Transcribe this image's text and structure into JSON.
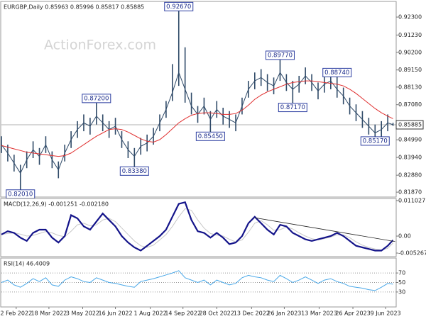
{
  "chart_data": [
    {
      "type": "hlc",
      "title": "EURGBP,Daily  0.85963 0.85996 0.85817 0.85885",
      "watermark": "ActionForex.com",
      "color": "#2f4a68",
      "x": [
        0,
        6,
        12,
        18,
        24,
        30,
        36,
        42,
        48,
        54,
        60,
        66,
        72,
        78,
        84,
        90,
        96,
        102,
        108,
        114,
        120,
        126,
        132,
        138,
        144,
        150,
        156,
        162,
        168,
        174,
        180,
        186,
        192,
        198,
        204,
        210,
        216,
        222,
        228,
        234,
        240,
        246,
        252,
        258,
        264,
        270,
        276,
        282,
        288,
        294,
        300,
        306,
        312,
        318,
        324,
        330,
        336,
        342,
        348,
        354,
        360,
        366,
        371
      ],
      "high": [
        0.852,
        0.847,
        0.841,
        0.835,
        0.843,
        0.849,
        0.845,
        0.852,
        0.843,
        0.837,
        0.847,
        0.855,
        0.861,
        0.865,
        0.863,
        0.872,
        0.865,
        0.861,
        0.863,
        0.855,
        0.849,
        0.845,
        0.851,
        0.853,
        0.857,
        0.865,
        0.873,
        0.895,
        0.9267,
        0.905,
        0.878,
        0.87,
        0.875,
        0.867,
        0.873,
        0.869,
        0.867,
        0.865,
        0.875,
        0.885,
        0.89,
        0.892,
        0.889,
        0.887,
        0.8977,
        0.889,
        0.885,
        0.888,
        0.893,
        0.889,
        0.884,
        0.888,
        0.89,
        0.8874,
        0.881,
        0.875,
        0.871,
        0.867,
        0.863,
        0.859,
        0.861,
        0.865,
        0.86
      ],
      "low": [
        0.842,
        0.837,
        0.831,
        0.8201,
        0.833,
        0.839,
        0.835,
        0.842,
        0.833,
        0.827,
        0.837,
        0.845,
        0.851,
        0.855,
        0.853,
        0.859,
        0.855,
        0.851,
        0.853,
        0.845,
        0.839,
        0.8338,
        0.841,
        0.843,
        0.847,
        0.855,
        0.863,
        0.873,
        0.882,
        0.872,
        0.865,
        0.86,
        0.865,
        0.8545,
        0.863,
        0.859,
        0.857,
        0.855,
        0.865,
        0.875,
        0.88,
        0.882,
        0.879,
        0.877,
        0.885,
        0.879,
        0.8717,
        0.878,
        0.883,
        0.879,
        0.874,
        0.878,
        0.88,
        0.875,
        0.871,
        0.865,
        0.861,
        0.857,
        0.853,
        0.8517,
        0.851,
        0.855,
        0.8582
      ],
      "close": [
        0.847,
        0.842,
        0.836,
        0.83,
        0.838,
        0.844,
        0.84,
        0.847,
        0.838,
        0.832,
        0.842,
        0.85,
        0.856,
        0.86,
        0.858,
        0.864,
        0.86,
        0.856,
        0.858,
        0.85,
        0.844,
        0.84,
        0.846,
        0.848,
        0.852,
        0.86,
        0.868,
        0.878,
        0.89,
        0.88,
        0.87,
        0.865,
        0.87,
        0.862,
        0.868,
        0.864,
        0.862,
        0.86,
        0.87,
        0.88,
        0.885,
        0.887,
        0.884,
        0.882,
        0.89,
        0.884,
        0.88,
        0.883,
        0.888,
        0.884,
        0.879,
        0.883,
        0.885,
        0.88,
        0.876,
        0.87,
        0.866,
        0.862,
        0.858,
        0.854,
        0.856,
        0.86,
        0.8589
      ],
      "series": [
        {
          "color": "#e03030",
          "values": [
            0.8465,
            0.8455,
            0.8445,
            0.8435,
            0.8425,
            0.842,
            0.8415,
            0.841,
            0.8405,
            0.84,
            0.8405,
            0.842,
            0.8445,
            0.847,
            0.8495,
            0.852,
            0.854,
            0.856,
            0.8565,
            0.856,
            0.8545,
            0.8525,
            0.8505,
            0.849,
            0.8485,
            0.85,
            0.853,
            0.8565,
            0.86,
            0.8625,
            0.8645,
            0.8655,
            0.866,
            0.866,
            0.8655,
            0.865,
            0.865,
            0.8655,
            0.8675,
            0.8705,
            0.874,
            0.8765,
            0.8785,
            0.88,
            0.8815,
            0.883,
            0.884,
            0.8845,
            0.885,
            0.885,
            0.8845,
            0.884,
            0.8835,
            0.883,
            0.882,
            0.88,
            0.8775,
            0.8745,
            0.8715,
            0.8685,
            0.866,
            0.864,
            0.8625
          ]
        }
      ],
      "xlim": [
        0,
        374
      ],
      "ylim": [
        0.8162,
        0.9319
      ],
      "yticks": [
        {
          "value": 0.923,
          "label": "0.92300"
        },
        {
          "value": 0.9123,
          "label": "0.91230"
        },
        {
          "value": 0.902,
          "label": "0.90200"
        },
        {
          "value": 0.8915,
          "label": "0.89150"
        },
        {
          "value": 0.8813,
          "label": "0.88130"
        },
        {
          "value": 0.8708,
          "label": "0.87080"
        },
        {
          "value": 0.8499,
          "label": "0.84990"
        },
        {
          "value": 0.8394,
          "label": "0.83940"
        },
        {
          "value": 0.8288,
          "label": "0.82880"
        },
        {
          "value": 0.8187,
          "label": "0.81870"
        }
      ],
      "last": {
        "value": 0.85885,
        "label": "0.85885"
      },
      "annotations": [
        {
          "x": 168,
          "value": 0.9267,
          "label": "0.92670"
        },
        {
          "x": 90,
          "value": 0.872,
          "label": "0.87200"
        },
        {
          "x": 126,
          "value": 0.8338,
          "label": "0.83380"
        },
        {
          "x": 18,
          "value": 0.8201,
          "label": "0.82010"
        },
        {
          "x": 198,
          "value": 0.8545,
          "label": "0.85450"
        },
        {
          "x": 264,
          "value": 0.8977,
          "label": "0.89770"
        },
        {
          "x": 276,
          "value": 0.8717,
          "label": "0.87170"
        },
        {
          "x": 318,
          "value": 0.8874,
          "label": "0.88740"
        },
        {
          "x": 354,
          "value": 0.8517,
          "label": "0.85170"
        }
      ]
    },
    {
      "type": "line",
      "title": "MACD(12,26,9) -0.001251 -0.002180",
      "x": [
        0,
        6,
        12,
        18,
        24,
        30,
        36,
        42,
        48,
        54,
        60,
        66,
        72,
        78,
        84,
        90,
        96,
        102,
        108,
        114,
        120,
        126,
        132,
        138,
        144,
        150,
        156,
        162,
        168,
        174,
        180,
        186,
        192,
        198,
        204,
        210,
        216,
        222,
        228,
        234,
        240,
        246,
        252,
        258,
        264,
        270,
        276,
        282,
        288,
        294,
        300,
        306,
        312,
        318,
        324,
        330,
        336,
        342,
        348,
        354,
        360,
        366,
        371
      ],
      "series": [
        {
          "color": "#c8c8c8",
          "values": [
            0.0005,
            0.0008,
            0.001,
            0.0006,
            0.0,
            0.0002,
            0.0008,
            0.0014,
            0.001,
            0.0002,
            -0.0002,
            0.0015,
            0.0035,
            0.004,
            0.0032,
            0.0035,
            0.005,
            0.0055,
            0.0045,
            0.0025,
            0.0005,
            -0.0015,
            -0.003,
            -0.0035,
            -0.0028,
            -0.0012,
            0.0005,
            0.003,
            0.006,
            0.0085,
            0.008,
            0.005,
            0.0025,
            0.0008,
            0.0003,
            0.0,
            -0.001,
            -0.0018,
            -0.0012,
            0.0012,
            0.004,
            0.0048,
            0.0035,
            0.0018,
            0.002,
            0.0028,
            0.0022,
            0.001,
            0.0,
            -0.0008,
            -0.0012,
            -0.0008,
            -0.0003,
            0.0004,
            0.0004,
            -0.0005,
            -0.0018,
            -0.0028,
            -0.0035,
            -0.004,
            -0.0043,
            -0.0038,
            -0.00218
          ]
        },
        {
          "color": "#14148a",
          "values": [
            0.0005,
            0.0015,
            0.001,
            -0.0005,
            -0.0015,
            0.001,
            0.002,
            0.002,
            -0.0005,
            -0.002,
            0.0,
            0.0065,
            0.0055,
            0.003,
            0.002,
            0.0045,
            0.007,
            0.005,
            0.003,
            0.0,
            -0.002,
            -0.0035,
            -0.0045,
            -0.003,
            -0.0015,
            0.0,
            0.002,
            0.006,
            0.01,
            0.0105,
            0.005,
            0.0015,
            0.001,
            -0.0005,
            0.001,
            -0.0005,
            -0.0025,
            -0.002,
            0.0,
            0.004,
            0.006,
            0.004,
            0.002,
            0.0005,
            0.0035,
            0.003,
            0.001,
            0.0,
            -0.001,
            -0.0015,
            -0.001,
            -0.0005,
            0.0,
            0.001,
            0.0,
            -0.0015,
            -0.003,
            -0.0035,
            -0.004,
            -0.0045,
            -0.0045,
            -0.003,
            -0.00125
          ]
        }
      ],
      "trendline": {
        "x": [
          240,
          373
        ],
        "values": [
          0.0057,
          -0.0017
        ]
      },
      "xlim": [
        0,
        374
      ],
      "ylim": [
        -0.00615,
        0.01145
      ],
      "yticks": [
        0.011027,
        {
          "value": 0,
          "label": "0.00"
        },
        -0.005267
      ]
    },
    {
      "type": "line",
      "title": "RSI(14) 46.4009",
      "grid": true,
      "x": [
        0,
        6,
        12,
        18,
        24,
        30,
        36,
        42,
        48,
        54,
        60,
        66,
        72,
        78,
        84,
        90,
        96,
        102,
        108,
        114,
        120,
        126,
        132,
        138,
        144,
        150,
        156,
        162,
        168,
        174,
        180,
        186,
        192,
        198,
        204,
        210,
        216,
        222,
        228,
        234,
        240,
        246,
        252,
        258,
        264,
        270,
        276,
        282,
        288,
        294,
        300,
        306,
        312,
        318,
        324,
        330,
        336,
        342,
        348,
        354,
        360,
        366,
        371
      ],
      "series": [
        {
          "color": "#4aa8e8",
          "values": [
            50,
            55,
            45,
            40,
            48,
            58,
            52,
            60,
            45,
            42,
            55,
            62,
            58,
            52,
            50,
            60,
            55,
            50,
            48,
            45,
            42,
            40,
            52,
            55,
            58,
            62,
            66,
            70,
            75,
            60,
            55,
            50,
            55,
            45,
            55,
            50,
            45,
            48,
            60,
            65,
            62,
            60,
            55,
            52,
            65,
            58,
            50,
            55,
            62,
            55,
            48,
            55,
            58,
            52,
            48,
            42,
            40,
            38,
            35,
            33,
            40,
            48,
            46.4
          ]
        }
      ],
      "xlim": [
        0,
        374
      ],
      "ylim": [
        0,
        100
      ],
      "yticks": [
        70,
        50,
        30
      ],
      "xticks": [
        {
          "value": 14,
          "label": "2 Feb 2022"
        },
        {
          "value": 45,
          "label": "18 Mar 2022"
        },
        {
          "value": 77,
          "label": "3 May 2022"
        },
        {
          "value": 108,
          "label": "16 Jun 2022"
        },
        {
          "value": 141,
          "label": "1 Aug 2022"
        },
        {
          "value": 172,
          "label": "14 Sep 2022"
        },
        {
          "value": 204,
          "label": "28 Oct 2022"
        },
        {
          "value": 237,
          "label": "13 Dec 2022"
        },
        {
          "value": 268,
          "label": "26 Jan 2023"
        },
        {
          "value": 301,
          "label": "13 Mar 2023"
        },
        {
          "value": 333,
          "label": "26 Apr 2023"
        },
        {
          "value": 364,
          "label": "9 Jun 2023"
        }
      ]
    }
  ]
}
